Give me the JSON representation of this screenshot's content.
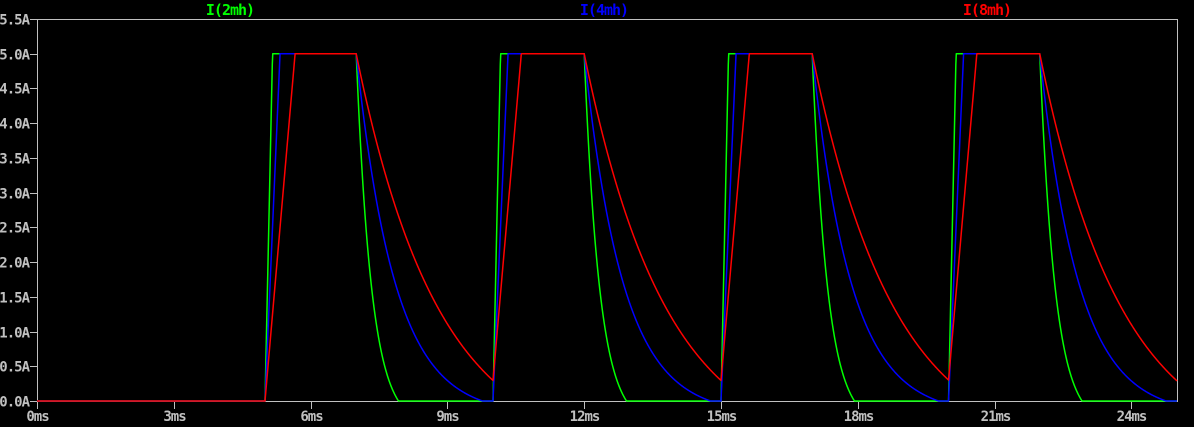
{
  "chart_data": {
    "type": "line",
    "title": "",
    "description": "Inductor current waveforms: pulsed 5A trapezoids with exponential freewheel decay for three inductances",
    "x_axis": {
      "unit": "ms",
      "min": 0,
      "max": 25,
      "tick_step": 3,
      "tick_labels": [
        "0ms",
        "3ms",
        "6ms",
        "9ms",
        "12ms",
        "15ms",
        "18ms",
        "21ms",
        "24ms"
      ]
    },
    "y_axis": {
      "unit": "A",
      "min": 0,
      "max": 5.5,
      "tick_step": 0.5,
      "tick_labels": [
        "0.0A",
        "0.5A",
        "1.0A",
        "1.5A",
        "2.0A",
        "2.5A",
        "3.0A",
        "3.5A",
        "4.0A",
        "4.5A",
        "5.0A",
        "5.5A"
      ]
    },
    "waveform": {
      "amplitude_A": 5.0,
      "initial_value_A": 0.0,
      "pulse_starts_ms": [
        5,
        10,
        15,
        20
      ],
      "pulse_on_ms": 2.0,
      "pulse_period_ms": 5.0
    },
    "series": [
      {
        "name": "I(2mh)",
        "color": "#00ff00",
        "inductance_mH": 2,
        "rise_time_ms": 0.165,
        "decay_tau_ms": 0.34,
        "decay_offset_A": 0.35,
        "value_at_25ms_A": 0.0
      },
      {
        "name": "I(4mh)",
        "color": "#0000ff",
        "inductance_mH": 4,
        "rise_time_ms": 0.33,
        "decay_tau_ms": 0.85,
        "decay_offset_A": 0.2,
        "value_at_25ms_A": 0.03
      },
      {
        "name": "I(8mh)",
        "color": "#ff0000",
        "inductance_mH": 8,
        "rise_time_ms": 0.66,
        "decay_tau_ms": 1.8,
        "decay_offset_A": 0.8,
        "value_at_25ms_A": 0.29
      }
    ],
    "grid": false,
    "legend_position": "top",
    "colors": {
      "background": "#000000",
      "axis": "#c0c0c0",
      "text": "#c0c0c0"
    }
  }
}
